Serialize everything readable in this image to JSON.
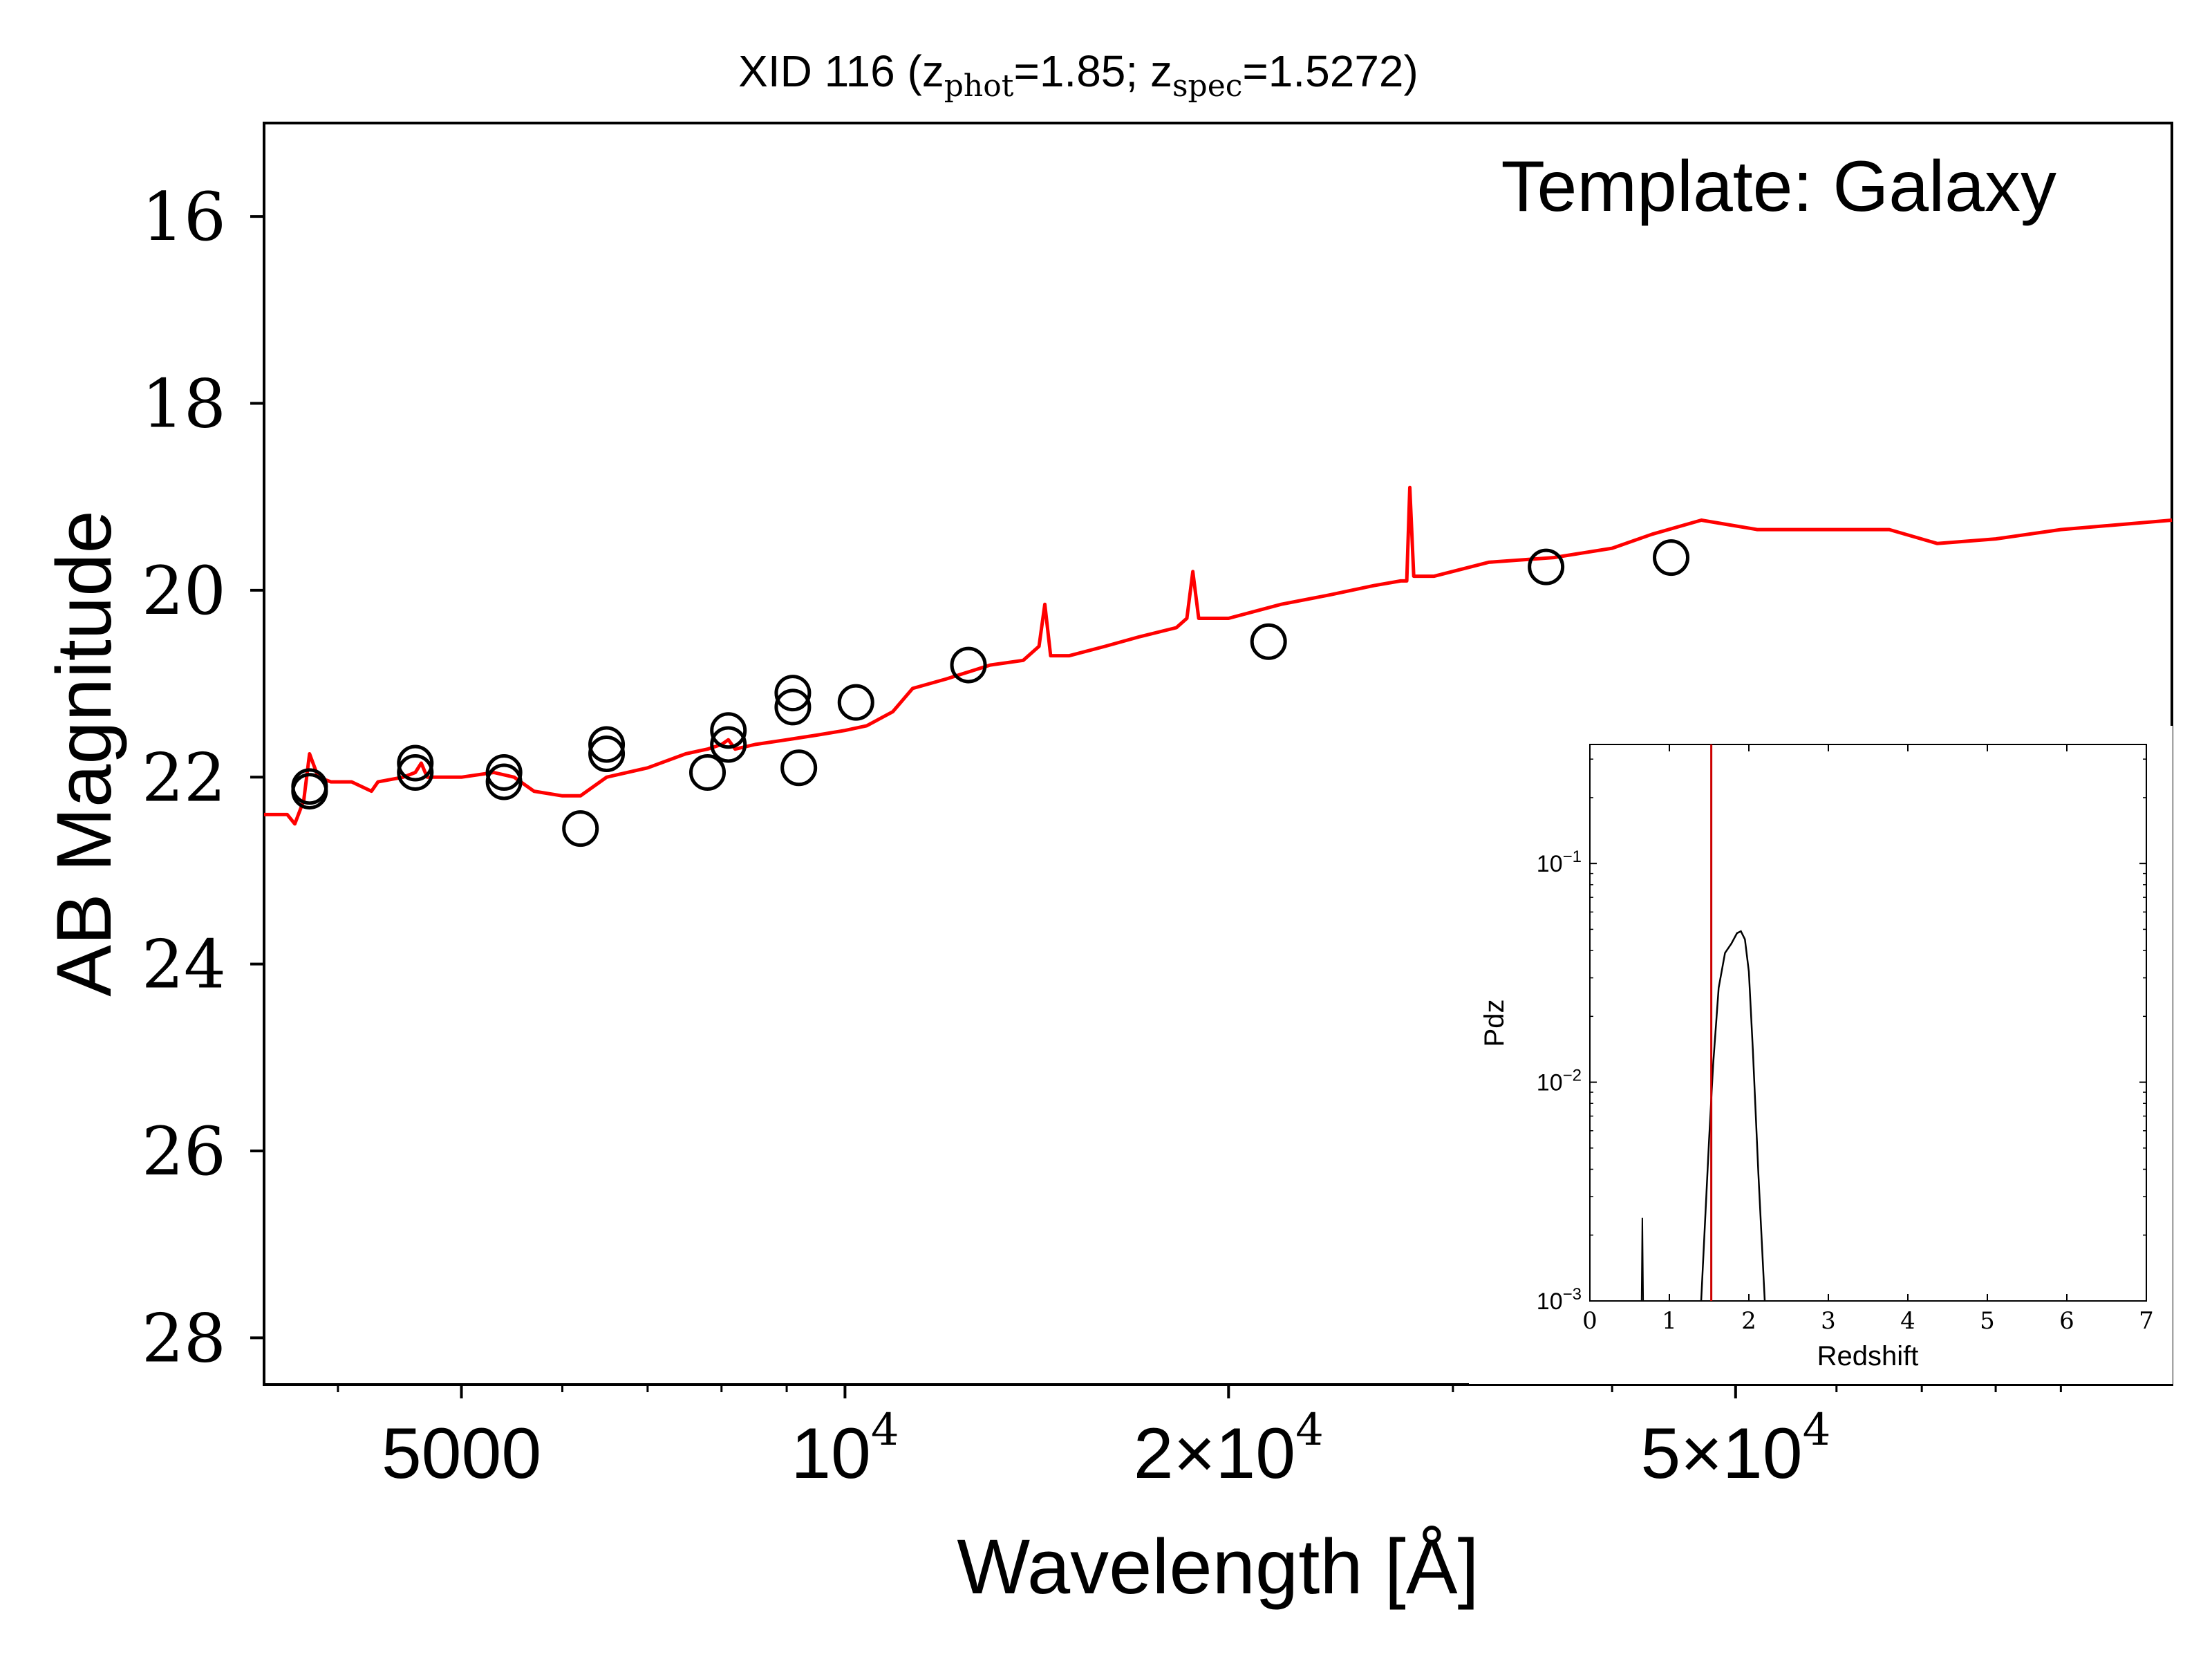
{
  "chart_data": [
    {
      "type": "scatter",
      "title": {
        "prefix": "XID 116 (z",
        "phot_sub": "phot",
        "phot_val": "=1.85; z",
        "spec_sub": "spec",
        "spec_val": "=1.5272)"
      },
      "annotation": "Template: Galaxy",
      "xlabel": "Wavelength [Å]",
      "ylabel": "AB Magnitude",
      "xscale": "log",
      "xlim": [
        3500,
        110000
      ],
      "ylim": [
        28.5,
        15
      ],
      "y_inverted": true,
      "x_ticks": [
        {
          "value": 5000,
          "label": "5000"
        },
        {
          "value": 10000,
          "base": "10",
          "exp": "4"
        },
        {
          "value": 20000,
          "coef": "2×10",
          "exp": "4"
        },
        {
          "value": 50000,
          "coef": "5×10",
          "exp": "4"
        }
      ],
      "x_minor_ticks": [
        4000,
        6000,
        7000,
        8000,
        9000,
        30000,
        40000,
        60000,
        70000,
        80000,
        90000
      ],
      "y_ticks": [
        "16",
        "18",
        "20",
        "22",
        "24",
        "26",
        "28"
      ],
      "markers": {
        "style": "open-circle",
        "color": "#000000"
      },
      "photometry": [
        {
          "x": 3800,
          "y": 22.1
        },
        {
          "x": 3800,
          "y": 22.15
        },
        {
          "x": 4600,
          "y": 21.85
        },
        {
          "x": 4600,
          "y": 21.95
        },
        {
          "x": 5400,
          "y": 21.95
        },
        {
          "x": 5400,
          "y": 22.05
        },
        {
          "x": 6200,
          "y": 22.55
        },
        {
          "x": 6500,
          "y": 21.75
        },
        {
          "x": 6500,
          "y": 21.65
        },
        {
          "x": 7800,
          "y": 21.95
        },
        {
          "x": 8100,
          "y": 21.65
        },
        {
          "x": 8100,
          "y": 21.5
        },
        {
          "x": 9100,
          "y": 21.25
        },
        {
          "x": 9100,
          "y": 21.1
        },
        {
          "x": 9200,
          "y": 21.9
        },
        {
          "x": 10200,
          "y": 21.2
        },
        {
          "x": 12500,
          "y": 20.8
        },
        {
          "x": 21500,
          "y": 20.55
        },
        {
          "x": 35500,
          "y": 19.75
        },
        {
          "x": 44500,
          "y": 19.65
        }
      ],
      "template_color": "#ff0000",
      "template_sed": [
        [
          3500,
          22.4
        ],
        [
          3650,
          22.4
        ],
        [
          3700,
          22.5
        ],
        [
          3760,
          22.25
        ],
        [
          3800,
          21.75
        ],
        [
          3860,
          22.0
        ],
        [
          3950,
          22.05
        ],
        [
          4100,
          22.05
        ],
        [
          4250,
          22.15
        ],
        [
          4300,
          22.05
        ],
        [
          4500,
          22.0
        ],
        [
          4600,
          21.95
        ],
        [
          4650,
          21.85
        ],
        [
          4700,
          22.0
        ],
        [
          5000,
          22.0
        ],
        [
          5300,
          21.95
        ],
        [
          5500,
          22.0
        ],
        [
          5700,
          22.15
        ],
        [
          6000,
          22.2
        ],
        [
          6200,
          22.2
        ],
        [
          6500,
          22.0
        ],
        [
          7000,
          21.9
        ],
        [
          7500,
          21.75
        ],
        [
          7800,
          21.7
        ],
        [
          8000,
          21.65
        ],
        [
          8100,
          21.6
        ],
        [
          8200,
          21.7
        ],
        [
          8500,
          21.65
        ],
        [
          9000,
          21.6
        ],
        [
          9500,
          21.55
        ],
        [
          10000,
          21.5
        ],
        [
          10400,
          21.45
        ],
        [
          10900,
          21.3
        ],
        [
          11300,
          21.05
        ],
        [
          12000,
          20.95
        ],
        [
          13000,
          20.8
        ],
        [
          13800,
          20.75
        ],
        [
          14200,
          20.6
        ],
        [
          14350,
          20.15
        ],
        [
          14500,
          20.7
        ],
        [
          15000,
          20.7
        ],
        [
          16000,
          20.6
        ],
        [
          17000,
          20.5
        ],
        [
          18200,
          20.4
        ],
        [
          18550,
          20.3
        ],
        [
          18750,
          19.8
        ],
        [
          18950,
          20.3
        ],
        [
          20000,
          20.3
        ],
        [
          22000,
          20.15
        ],
        [
          24000,
          20.05
        ],
        [
          26000,
          19.95
        ],
        [
          27300,
          19.9
        ],
        [
          27600,
          19.9
        ],
        [
          27750,
          18.9
        ],
        [
          27950,
          19.85
        ],
        [
          29000,
          19.85
        ],
        [
          32000,
          19.7
        ],
        [
          36000,
          19.65
        ],
        [
          40000,
          19.55
        ],
        [
          43000,
          19.4
        ],
        [
          47000,
          19.25
        ],
        [
          52000,
          19.35
        ],
        [
          60000,
          19.35
        ],
        [
          66000,
          19.35
        ],
        [
          72000,
          19.5
        ],
        [
          80000,
          19.45
        ],
        [
          90000,
          19.35
        ],
        [
          110000,
          19.25
        ]
      ]
    },
    {
      "type": "line",
      "xlabel": "Redshift",
      "ylabel": "Pdz",
      "yscale": "log",
      "xlim": [
        0,
        7
      ],
      "ylim": [
        0.001,
        0.35
      ],
      "x_ticks": [
        "0",
        "1",
        "2",
        "3",
        "4",
        "5",
        "6",
        "7"
      ],
      "y_ticks": [
        {
          "value": 0.1,
          "base": "10",
          "exp": "−1"
        },
        {
          "value": 0.01,
          "base": "10",
          "exp": "−2"
        },
        {
          "value": 0.001,
          "base": "10",
          "exp": "−3"
        }
      ],
      "z_spec": 1.5272,
      "z_spec_color": "#cc0000",
      "pdz_curve": [
        [
          0.65,
          0.001
        ],
        [
          0.66,
          0.0024
        ],
        [
          0.67,
          0.001
        ]
      ],
      "pdz_main": [
        [
          1.4,
          0.001
        ],
        [
          1.5,
          0.0055
        ],
        [
          1.55,
          0.012
        ],
        [
          1.62,
          0.027
        ],
        [
          1.7,
          0.039
        ],
        [
          1.78,
          0.043
        ],
        [
          1.85,
          0.048
        ],
        [
          1.9,
          0.049
        ],
        [
          1.95,
          0.045
        ],
        [
          2.0,
          0.032
        ],
        [
          2.05,
          0.014
        ],
        [
          2.12,
          0.0038
        ],
        [
          2.2,
          0.001
        ]
      ]
    }
  ]
}
